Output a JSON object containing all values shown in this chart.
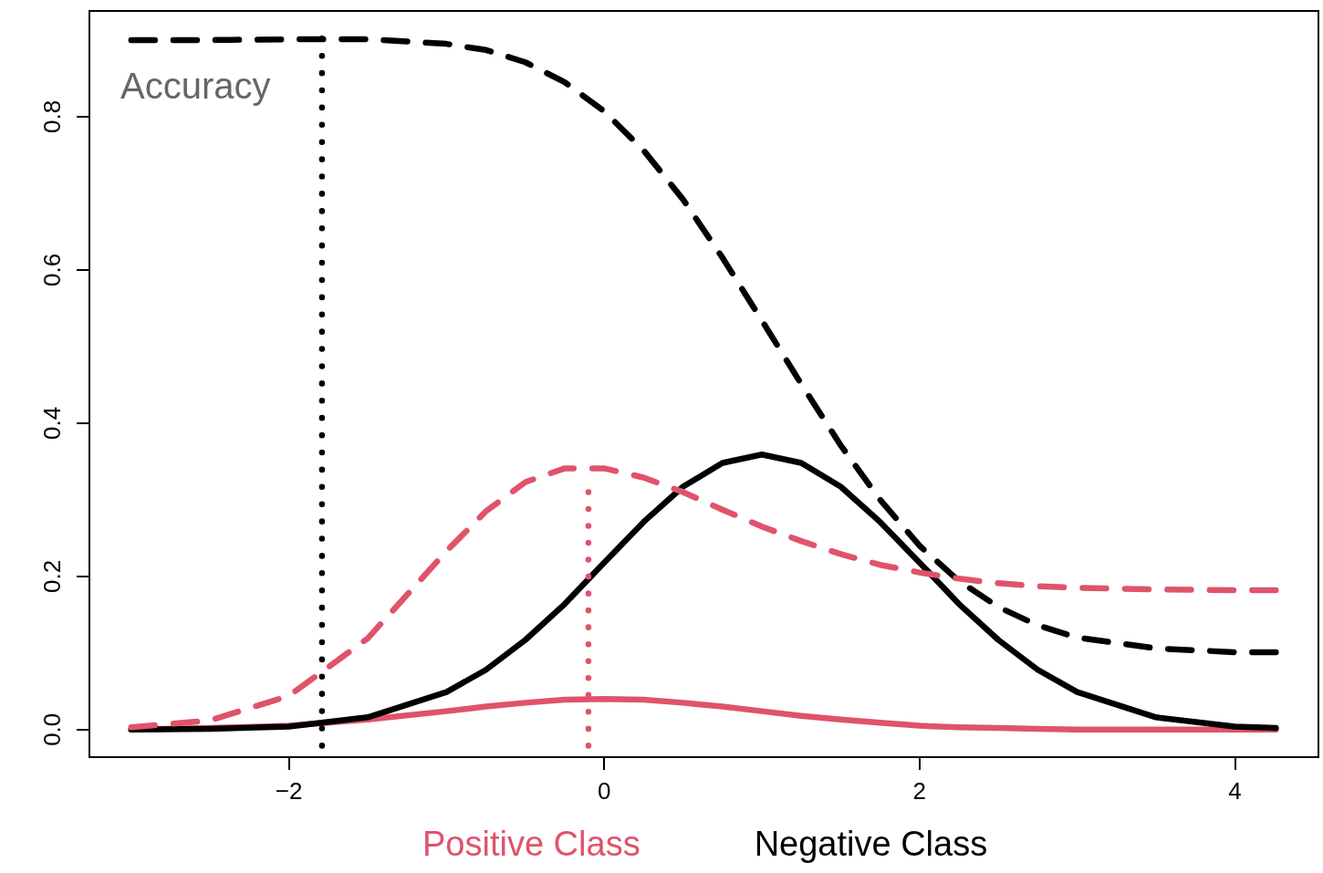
{
  "chart_data": {
    "type": "line",
    "legend": "bottom",
    "grid": false,
    "marker": "none",
    "xlim": [
      -3.265,
      4.53
    ],
    "ylim": [
      -0.036,
      0.938
    ],
    "xticks": [
      {
        "value": -2,
        "label": "−2"
      },
      0,
      2,
      4
    ],
    "yticks": [
      {
        "value": 0,
        "label": "0.0"
      },
      0.2,
      0.4,
      0.6,
      0.8
    ],
    "annotations": [
      "Accuracy"
    ],
    "series": [
      {
        "name": "Positive Class",
        "color": "#df536b",
        "line_style": "solid",
        "x": [
          -3,
          -2.5,
          -2,
          -1.5,
          -1,
          -0.75,
          -0.5,
          -0.25,
          0,
          0.25,
          0.5,
          0.75,
          1,
          1.25,
          1.5,
          1.75,
          2,
          2.25,
          2.5,
          2.75,
          3,
          3.5,
          4,
          4.26
        ],
        "values": [
          0.0,
          0.002,
          0.005,
          0.013,
          0.024,
          0.03,
          0.035,
          0.039,
          0.04,
          0.039,
          0.035,
          0.03,
          0.024,
          0.018,
          0.013,
          0.009,
          0.005,
          0.003,
          0.002,
          0.001,
          0.0,
          0.0,
          0.0,
          0.0
        ]
      },
      {
        "name": "Negative Class",
        "color": "#000000",
        "line_style": "solid",
        "x": [
          -3,
          -2.5,
          -2,
          -1.5,
          -1,
          -0.75,
          -0.5,
          -0.25,
          0,
          0.25,
          0.5,
          0.75,
          1,
          1.25,
          1.5,
          1.75,
          2,
          2.25,
          2.5,
          2.75,
          3,
          3.5,
          4,
          4.26
        ],
        "values": [
          0.0,
          0.001,
          0.004,
          0.016,
          0.049,
          0.078,
          0.117,
          0.164,
          0.218,
          0.271,
          0.317,
          0.348,
          0.359,
          0.348,
          0.317,
          0.271,
          0.218,
          0.164,
          0.117,
          0.078,
          0.049,
          0.016,
          0.004,
          0.002
        ]
      },
      {
        "color": "#000000",
        "line_style": "dashed",
        "x": [
          -3,
          -2.5,
          -2,
          -1.5,
          -1,
          -0.75,
          -0.5,
          -0.25,
          0,
          0.25,
          0.5,
          0.75,
          1,
          1.25,
          1.5,
          1.75,
          2,
          2.25,
          2.5,
          2.75,
          3,
          3.5,
          4,
          4.26
        ],
        "values": [
          0.9,
          0.9,
          0.901,
          0.901,
          0.895,
          0.887,
          0.871,
          0.845,
          0.807,
          0.756,
          0.692,
          0.616,
          0.534,
          0.451,
          0.371,
          0.3,
          0.24,
          0.194,
          0.16,
          0.136,
          0.12,
          0.106,
          0.101,
          0.101
        ]
      },
      {
        "color": "#df536b",
        "line_style": "dashed",
        "x": [
          -3,
          -2.5,
          -2,
          -1.5,
          -1,
          -0.75,
          -0.5,
          -0.25,
          0,
          0.25,
          0.5,
          0.75,
          1,
          1.25,
          1.5,
          1.75,
          2,
          2.25,
          2.5,
          2.75,
          3,
          3.5,
          4,
          4.26
        ],
        "values": [
          0.003,
          0.012,
          0.044,
          0.119,
          0.233,
          0.285,
          0.323,
          0.341,
          0.341,
          0.329,
          0.31,
          0.287,
          0.265,
          0.246,
          0.229,
          0.215,
          0.205,
          0.197,
          0.191,
          0.187,
          0.185,
          0.183,
          0.182,
          0.182
        ]
      },
      {
        "color": "#000000",
        "line_style": "dotted",
        "x": [
          -1.79,
          -1.79
        ],
        "values": [
          -0.021,
          0.902
        ]
      },
      {
        "color": "#df536b",
        "line_style": "dotted",
        "x": [
          -0.1,
          -0.1
        ],
        "values": [
          -0.021,
          0.31
        ]
      }
    ]
  }
}
